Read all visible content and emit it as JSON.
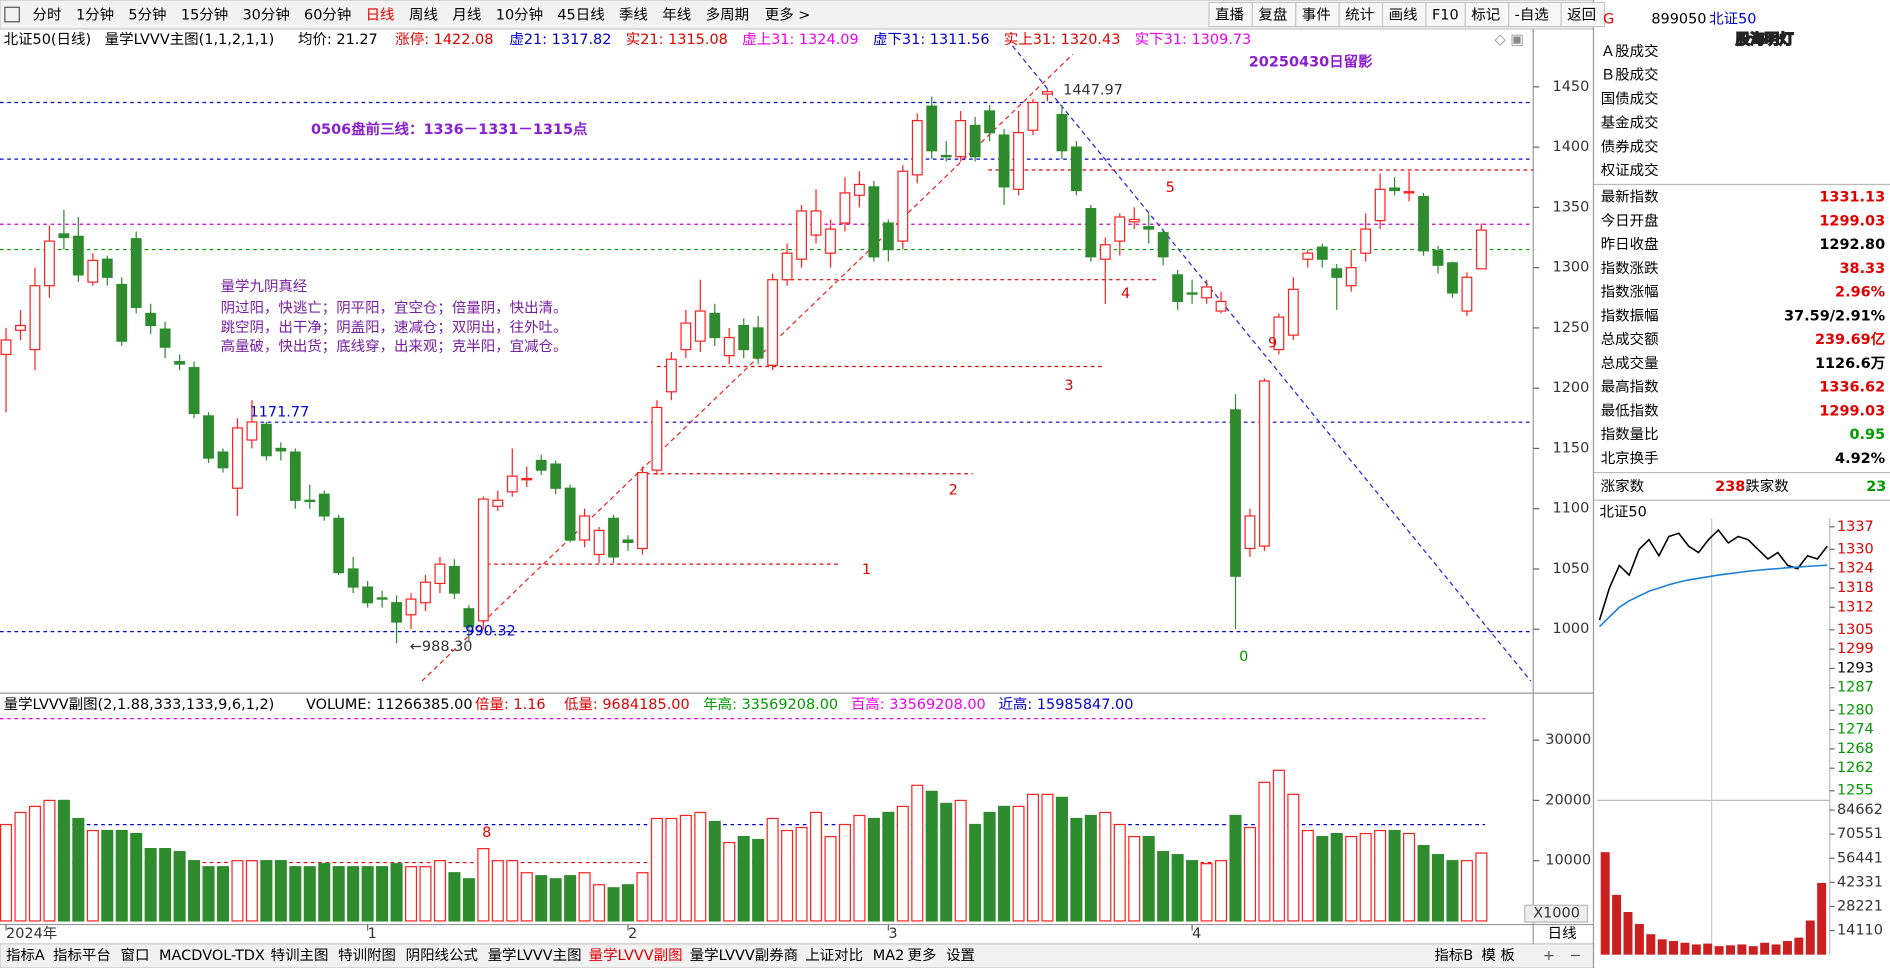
{
  "toolbar": {
    "left": [
      "分时",
      "1分钟",
      "5分钟",
      "15分钟",
      "30分钟",
      "60分钟",
      {
        "text": "日线",
        "color": "#e00000"
      },
      "周线",
      "月线",
      "10分钟",
      "45日线",
      "季线",
      "年线",
      "多周期",
      "更多 >"
    ],
    "right": [
      "直播",
      "复盘",
      "事件",
      "统计",
      "画线",
      "F10",
      "标记",
      "-自选",
      "返回"
    ]
  },
  "watermark": "股海明灯",
  "chart_data": {
    "type": "candlestick",
    "title": "20250430日留影",
    "subtitle": "0506盘前三线：1336－1331－1315点",
    "header": [
      {
        "text": "北证50(日线)",
        "color": "#000000"
      },
      {
        "text": "量学LVVV主图(1,1,2,1,1)",
        "color": "#000000"
      },
      {
        "text": "均价: 21.27",
        "color": "#000000"
      },
      {
        "text": "涨停: 1422.08",
        "color": "#e00000"
      },
      {
        "text": "虚21: 1317.82",
        "color": "#0000cc"
      },
      {
        "text": "实21: 1315.08",
        "color": "#e00000"
      },
      {
        "text": "虚上31: 1324.09",
        "color": "#ee00ee"
      },
      {
        "text": "虚下31: 1311.56",
        "color": "#0000cc"
      },
      {
        "text": "实上31: 1320.43",
        "color": "#e00000"
      },
      {
        "text": "实下31: 1309.73",
        "color": "#ee00ee"
      }
    ],
    "note": {
      "title": "量学九阴真经",
      "lines": [
        "阴过阳，快逃亡；阴平阳，宜空仓；倍量阴，快出清。",
        "跳空阴，出干净；阴盖阳，速减仓；双阴出，往外吐。",
        "高量破，快出货；底线穿，出来观；克半阳，宜减仓。"
      ],
      "color": "#7a1fa0"
    },
    "categories": [
      "2024年",
      null,
      null,
      null,
      null,
      null,
      null,
      null,
      null,
      null,
      null,
      null,
      null,
      null,
      null,
      null,
      null,
      null,
      null,
      null,
      null,
      null,
      null,
      null,
      null,
      "1",
      null,
      null,
      null,
      null,
      null,
      null,
      null,
      null,
      null,
      null,
      null,
      null,
      null,
      null,
      null,
      null,
      null,
      "2",
      null,
      null,
      null,
      null,
      null,
      null,
      null,
      null,
      null,
      null,
      null,
      null,
      null,
      null,
      null,
      null,
      null,
      "3",
      null,
      null,
      null,
      null,
      null,
      null,
      null,
      null,
      null,
      null,
      null,
      null,
      null,
      null,
      null,
      null,
      null,
      null,
      null,
      null,
      "4",
      null,
      null,
      null,
      null,
      null,
      null,
      null,
      null,
      null,
      null,
      null,
      null,
      null,
      null,
      null,
      null,
      null,
      null,
      null,
      null
    ],
    "x_axis_label": "日线",
    "open": [
      1228,
      1248,
      1232,
      1285,
      1328,
      1326,
      1288,
      1307,
      1286,
      1324,
      1262,
      1249,
      1222,
      1217,
      1177,
      1147,
      1117,
      1157,
      1170,
      1150,
      1147,
      1107,
      1112,
      1092,
      1050,
      1035,
      1026,
      1022,
      1012,
      1022,
      1038,
      1052,
      1017,
      1007,
      1102,
      1114,
      1125,
      1140,
      1137,
      1117,
      1074,
      1062,
      1092,
      1074,
      1067,
      1132,
      1197,
      1232,
      1239,
      1262,
      1227,
      1252,
      1250,
      1219,
      1290,
      1307,
      1327,
      1312,
      1337,
      1360,
      1367,
      1337,
      1322,
      1377,
      1434,
      1393,
      1392,
      1418,
      1430,
      1410,
      1365,
      1414,
      1444,
      1427,
      1400,
      1349,
      1307,
      1322,
      1338,
      1334,
      1329,
      1294,
      1279,
      1275,
      1264,
      1182,
      1067,
      1069,
      1232,
      1244,
      1307,
      1317,
      1299,
      1285,
      1312,
      1339,
      1366,
      1362,
      1359,
      1314,
      1304,
      1264,
      1299.03
    ],
    "high": [
      1250,
      1265,
      1300,
      1335,
      1348,
      1342,
      1312,
      1310,
      1292,
      1330,
      1270,
      1255,
      1228,
      1222,
      1180,
      1150,
      1175,
      1190,
      1172,
      1155,
      1150,
      1120,
      1115,
      1095,
      1060,
      1040,
      1032,
      1028,
      1030,
      1045,
      1060,
      1058,
      1020,
      1110,
      1115,
      1150,
      1135,
      1145,
      1140,
      1120,
      1100,
      1085,
      1095,
      1078,
      1135,
      1190,
      1230,
      1265,
      1290,
      1270,
      1250,
      1258,
      1260,
      1295,
      1320,
      1352,
      1365,
      1340,
      1375,
      1380,
      1372,
      1340,
      1385,
      1428,
      1442,
      1405,
      1430,
      1425,
      1435,
      1415,
      1430,
      1440,
      1447.97,
      1435,
      1405,
      1352,
      1325,
      1345,
      1350,
      1345,
      1332,
      1298,
      1290,
      1290,
      1280,
      1195,
      1100,
      1208,
      1262,
      1292,
      1315,
      1320,
      1303,
      1315,
      1345,
      1378,
      1375,
      1380,
      1362,
      1318,
      1305,
      1296,
      1336.62
    ],
    "low": [
      1180,
      1240,
      1215,
      1275,
      1315,
      1288,
      1285,
      1285,
      1235,
      1262,
      1245,
      1225,
      1215,
      1175,
      1138,
      1130,
      1094,
      1150,
      1140,
      1140,
      1100,
      1100,
      1090,
      1045,
      1030,
      1018,
      1018,
      988.3,
      1000,
      1015,
      1030,
      1025,
      990.32,
      1000,
      1098,
      1110,
      1118,
      1128,
      1112,
      1072,
      1068,
      1055,
      1055,
      1065,
      1062,
      1128,
      1190,
      1225,
      1230,
      1235,
      1220,
      1225,
      1220,
      1215,
      1285,
      1300,
      1320,
      1300,
      1330,
      1350,
      1305,
      1305,
      1315,
      1370,
      1390,
      1388,
      1388,
      1388,
      1405,
      1352,
      1360,
      1410,
      1438,
      1390,
      1360,
      1305,
      1270,
      1310,
      1332,
      1320,
      1302,
      1265,
      1270,
      1270,
      1262,
      1000,
      1060,
      1065,
      1228,
      1240,
      1300,
      1300,
      1265,
      1280,
      1305,
      1332,
      1360,
      1355,
      1310,
      1295,
      1275,
      1260,
      1299.03
    ],
    "close": [
      1240,
      1252,
      1285,
      1322,
      1325,
      1294,
      1306,
      1292,
      1239,
      1267,
      1252,
      1234,
      1220,
      1179,
      1142,
      1134,
      1167,
      1172,
      1144,
      1148,
      1107,
      1106,
      1094,
      1047,
      1035,
      1022,
      1025,
      1006,
      1025,
      1039,
      1054,
      1030,
      1002,
      1108,
      1107,
      1127,
      1125,
      1132,
      1117,
      1074,
      1094,
      1082,
      1060,
      1072,
      1130,
      1184,
      1224,
      1254,
      1264,
      1242,
      1242,
      1232,
      1225,
      1290,
      1312,
      1347,
      1347,
      1332,
      1362,
      1369,
      1309,
      1315,
      1380,
      1422,
      1397,
      1392,
      1422,
      1392,
      1412,
      1367,
      1412,
      1437,
      1446,
      1397,
      1364,
      1309,
      1319,
      1342,
      1340,
      1332,
      1309,
      1272,
      1278,
      1284,
      1272,
      1044,
      1094,
      1206,
      1259,
      1282,
      1312,
      1307,
      1292,
      1300,
      1332,
      1365,
      1364,
      1363,
      1314,
      1302,
      1279,
      1292,
      1331.13
    ],
    "up_color": "#ff2020",
    "down_color": "#2e8b2e",
    "ylim": [
      950,
      1480
    ],
    "yticks": [
      1000,
      1050,
      1100,
      1150,
      1200,
      1250,
      1300,
      1350,
      1400,
      1450
    ],
    "levels": [
      {
        "value": 1437,
        "color": "#0000cc"
      },
      {
        "value": 1390,
        "color": "#0000cc"
      },
      {
        "value": 1381,
        "color": "#e00000"
      },
      {
        "value": 1336,
        "color": "#cc00cc"
      },
      {
        "value": 1315,
        "color": "#009900"
      },
      {
        "value": 1290,
        "color": "#e00000"
      },
      {
        "value": 1218,
        "color": "#e00000"
      },
      {
        "value": 1171.77,
        "color": "#0000cc"
      },
      {
        "value": 1129,
        "color": "#e00000"
      },
      {
        "value": 1054,
        "color": "#e00000"
      },
      {
        "value": 998,
        "color": "#0000cc"
      }
    ],
    "low_label": {
      "value": 988.3,
      "label": "←988.30"
    },
    "annotations": [
      "1",
      "2",
      "3",
      "4",
      "5",
      "9",
      "0"
    ],
    "volume": {
      "header": [
        {
          "text": "量学LVVV副图(2,1.88,333,133,9,6,1,2)",
          "color": "#000000"
        },
        {
          "text": "VOLUME: 11266385.00",
          "color": "#000000"
        },
        {
          "text": "倍量: 1.16",
          "color": "#e00000"
        },
        {
          "text": "低量: 9684185.00",
          "color": "#e00000"
        },
        {
          "text": "年高: 33569208.00",
          "color": "#009900"
        },
        {
          "text": "百高: 33569208.00",
          "color": "#ee00ee"
        },
        {
          "text": "近高: 15985847.00",
          "color": "#0000cc"
        }
      ],
      "values": [
        16000,
        18000,
        19000,
        20000,
        20000,
        17000,
        15000,
        15000,
        15000,
        14500,
        12000,
        12000,
        11500,
        10000,
        9000,
        9000,
        10000,
        10000,
        10000,
        10000,
        9000,
        9000,
        9500,
        9000,
        9000,
        9000,
        9000,
        9500,
        9000,
        9000,
        10000,
        8000,
        7000,
        12000,
        10000,
        10000,
        8000,
        7500,
        7000,
        7500,
        8000,
        6000,
        5500,
        6000,
        8000,
        17000,
        17000,
        17500,
        18000,
        16500,
        13000,
        14000,
        13500,
        17000,
        15000,
        15500,
        18000,
        14000,
        16000,
        17500,
        17000,
        18000,
        19000,
        22500,
        21500,
        19500,
        20000,
        16000,
        18000,
        19000,
        19000,
        21000,
        21000,
        20500,
        17000,
        17500,
        18000,
        16000,
        14000,
        14000,
        11500,
        11000,
        10000,
        9500,
        10000,
        17500,
        15500,
        23000,
        25000,
        21000,
        15000,
        14000,
        14500,
        14000,
        14500,
        15000,
        15000,
        14500,
        12500,
        11000,
        10000,
        10000,
        11266.385
      ],
      "ylim": [
        0,
        37000
      ],
      "yticks": [
        10000,
        20000,
        30000
      ],
      "multiplier": "X1000",
      "levels": [
        {
          "value": 33569.208,
          "color": "#ee00ee"
        },
        {
          "value": 15985.847,
          "color": "#0000cc"
        },
        {
          "value": 9684.185,
          "color": "#e00000"
        }
      ],
      "annotation": "8"
    }
  },
  "quote": {
    "flag": "G",
    "code": "899050",
    "name": "北证50",
    "menu": [
      "Ａ股成交",
      "Ｂ股成交",
      "国债成交",
      "基金成交",
      "债券成交",
      "权证成交"
    ],
    "rows": [
      {
        "label": "最新指数",
        "value": "1331.13",
        "color": "#e00000"
      },
      {
        "label": "今日开盘",
        "value": "1299.03",
        "color": "#e00000"
      },
      {
        "label": "昨日收盘",
        "value": "1292.80",
        "color": "#000000"
      },
      {
        "label": "指数涨跌",
        "value": "38.33",
        "color": "#e00000"
      },
      {
        "label": "指数涨幅",
        "value": "2.96%",
        "color": "#e00000"
      },
      {
        "label": "指数振幅",
        "value": "37.59/2.91%",
        "color": "#000000"
      },
      {
        "label": "总成交额",
        "value": "239.69亿",
        "color": "#e00000"
      },
      {
        "label": "总成交量",
        "value": "1126.6万",
        "color": "#000000"
      },
      {
        "label": "最高指数",
        "value": "1336.62",
        "color": "#e00000"
      },
      {
        "label": "最低指数",
        "value": "1299.03",
        "color": "#e00000"
      },
      {
        "label": "指数量比",
        "value": "0.95",
        "color": "#009900"
      },
      {
        "label": "北京换手",
        "value": "4.92%",
        "color": "#000000"
      }
    ],
    "breadth": [
      {
        "label": "涨家数",
        "value": "238",
        "color": "#e00000"
      },
      {
        "label": "跌家数",
        "value": "23",
        "color": "#009900"
      }
    ]
  },
  "intraday": {
    "type": "line",
    "title": "北证50",
    "prev_close": 1292.8,
    "series": [
      {
        "color": "#000000",
        "values": [
          1308,
          1318,
          1325,
          1322,
          1330,
          1333,
          1328,
          1334,
          1335,
          1331,
          1329,
          1333,
          1336,
          1332,
          1334,
          1333,
          1330,
          1327,
          1329,
          1325,
          1324,
          1328,
          1327,
          1331
        ]
      },
      {
        "color": "#1a7fd8",
        "values": [
          1306,
          1309,
          1312,
          1314,
          1315.5,
          1317,
          1318,
          1319,
          1319.8,
          1320.5,
          1321,
          1321.5,
          1322,
          1322.4,
          1322.8,
          1323.2,
          1323.5,
          1323.8,
          1324,
          1324.3,
          1324.5,
          1324.7,
          1324.9,
          1325.1
        ]
      }
    ],
    "ylim": [
      1252,
      1340
    ],
    "yticks": [
      1337,
      1330,
      1324,
      1318,
      1312,
      1305,
      1299,
      1293,
      1287,
      1280,
      1274,
      1268,
      1262,
      1255
    ],
    "volume": {
      "values": [
        60000,
        35000,
        25000,
        18000,
        12000,
        9000,
        8000,
        7000,
        6000,
        6500,
        5000,
        5500,
        6000,
        5000,
        7000,
        6000,
        8000,
        10000,
        20000,
        42000
      ],
      "color": "#cc2020",
      "ylim": [
        0,
        89600
      ],
      "yticks": [
        84662,
        70551,
        56441,
        42331,
        28221,
        14110
      ]
    }
  },
  "tabs": {
    "left": [
      "指标A",
      "指标平台",
      "窗口",
      "MACD",
      "VOL-TDX",
      "特训主图",
      "特训附图",
      "阴阳线公式",
      "量学LVVV主图",
      {
        "text": "量学LVVV副图",
        "color": "#e00000"
      },
      "量学LVVV副券商",
      "上证对比",
      "MA2",
      "更多",
      "设置"
    ],
    "right": [
      "指标B",
      "模 板"
    ]
  }
}
